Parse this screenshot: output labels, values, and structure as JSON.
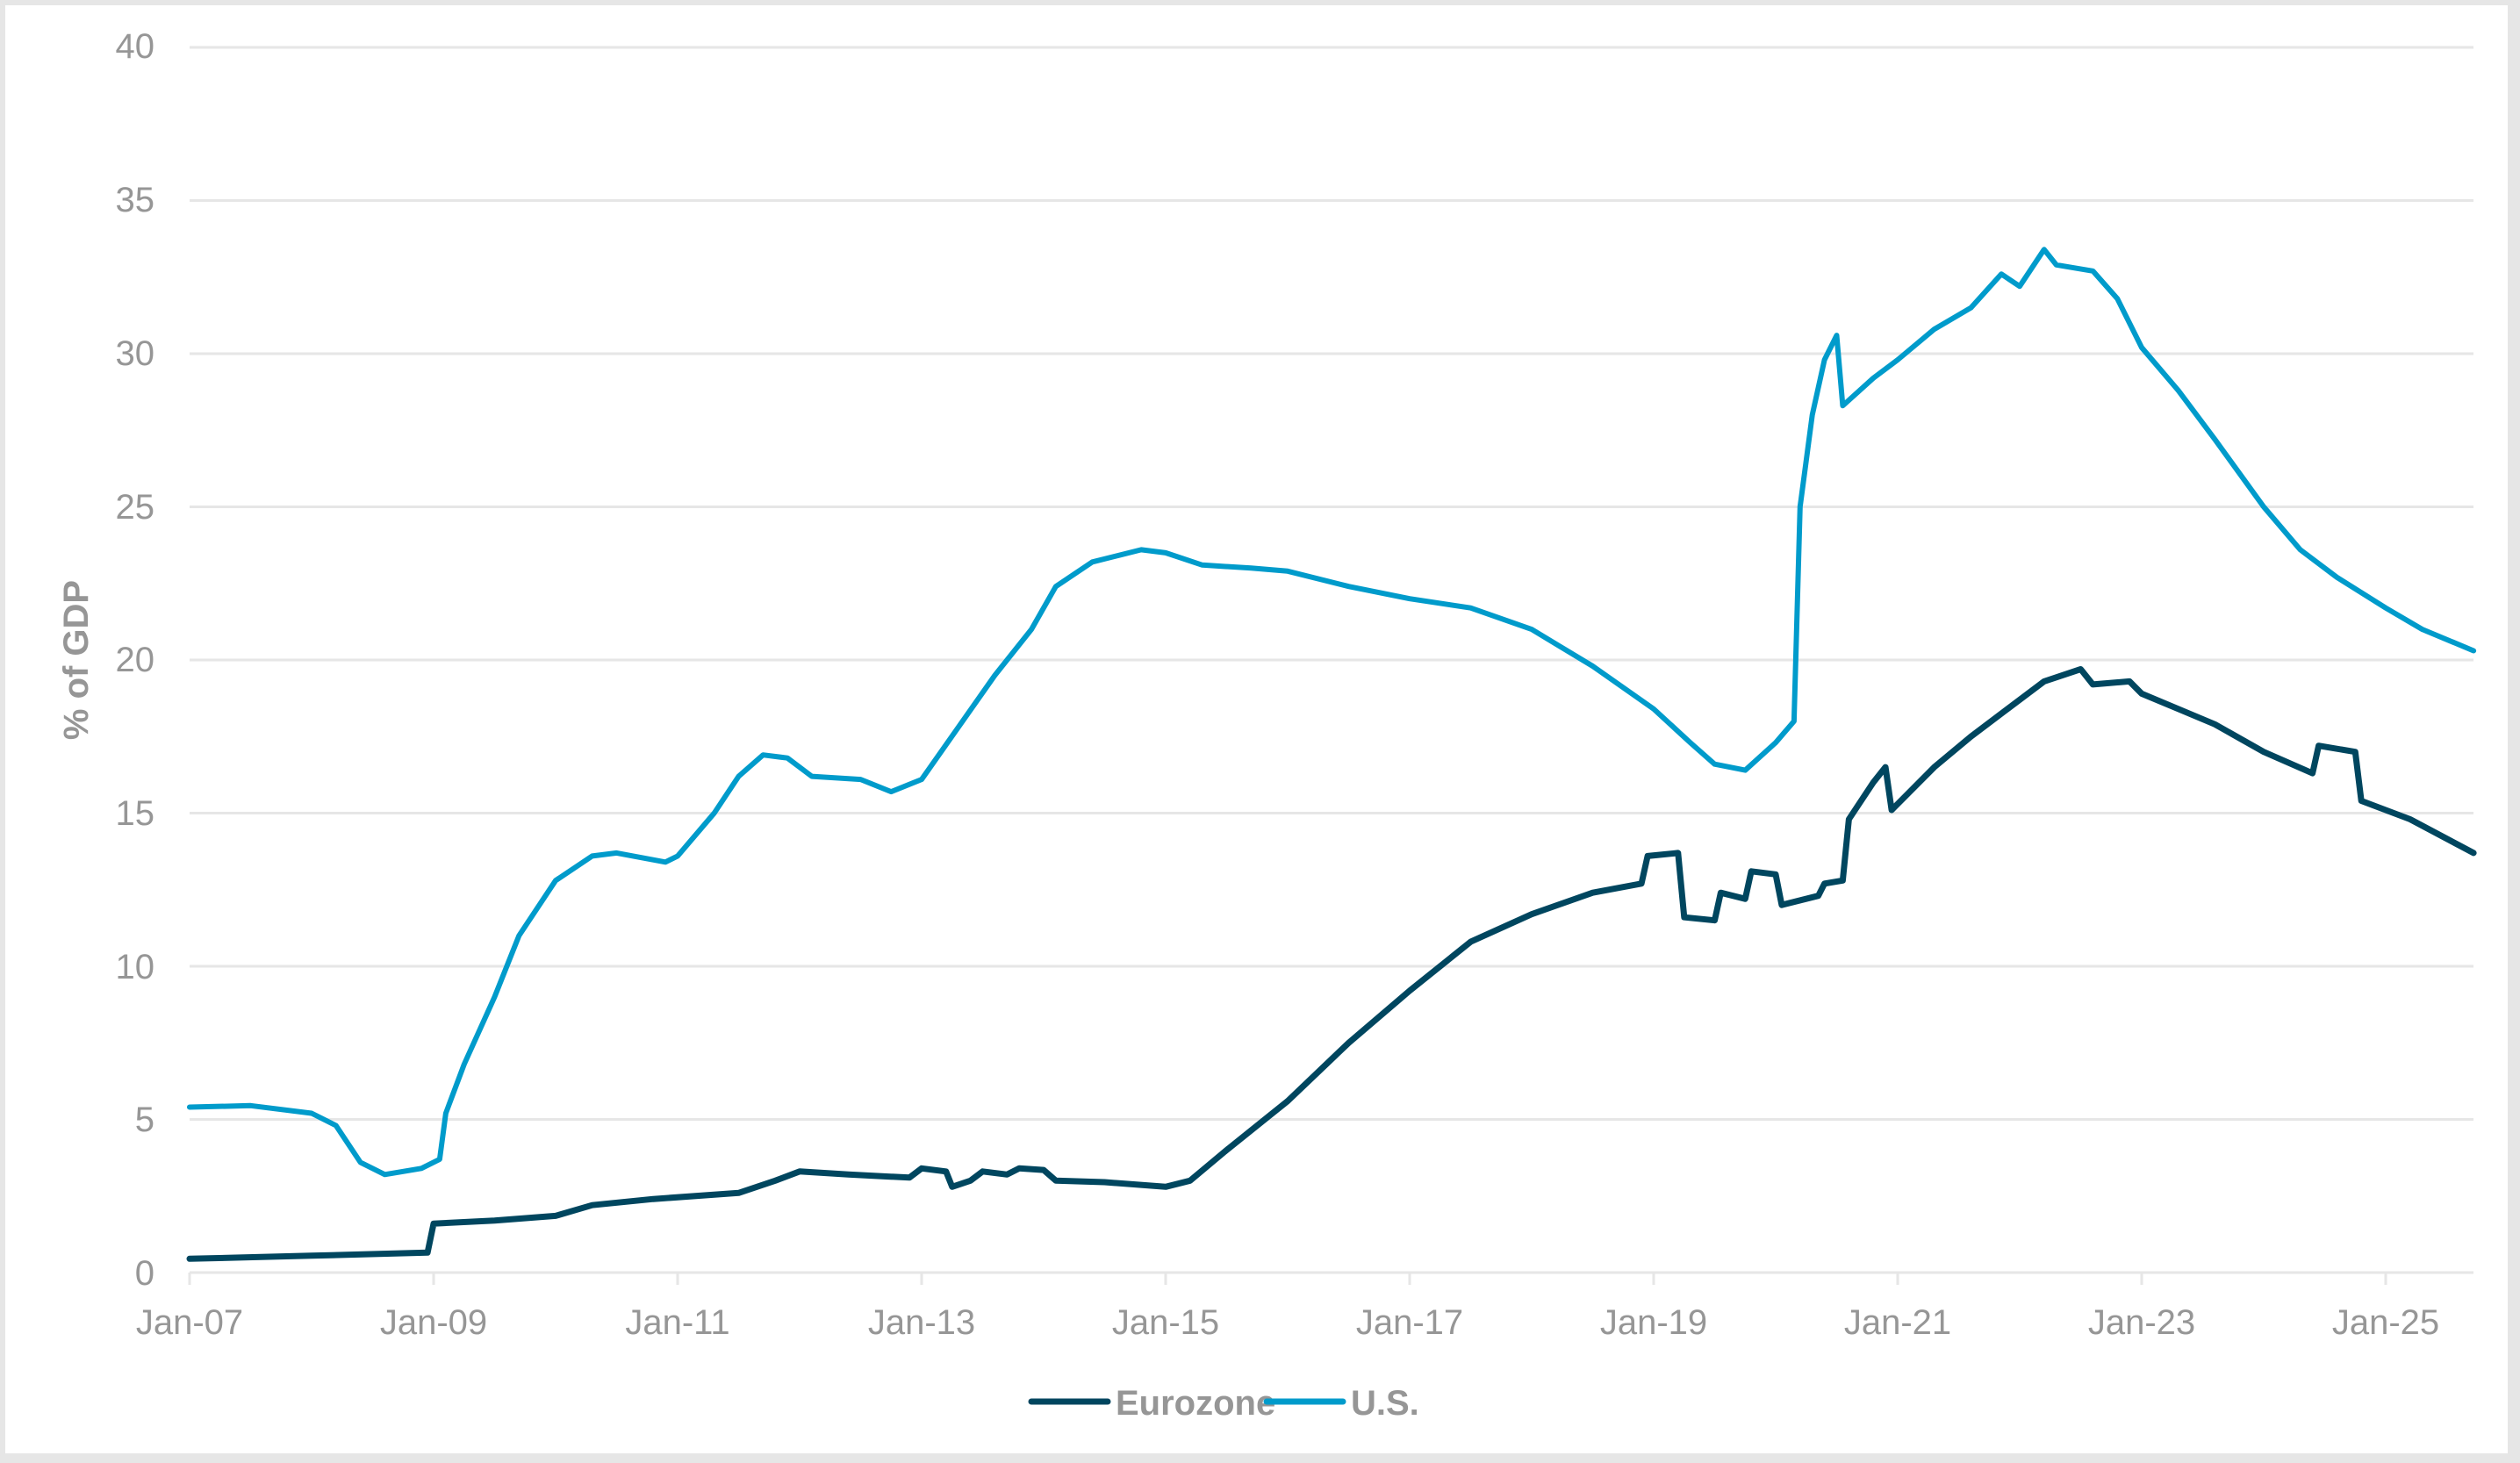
{
  "chart_data": {
    "type": "line",
    "title": "",
    "xlabel": "",
    "ylabel": "% of GDP",
    "ylim": [
      0,
      40
    ],
    "yticks": [
      0,
      5,
      10,
      15,
      20,
      25,
      30,
      35,
      40
    ],
    "xlim": [
      2007.0,
      2025.72
    ],
    "xticks": [
      {
        "x": 2007,
        "label": "Jan-07"
      },
      {
        "x": 2009,
        "label": "Jan-09"
      },
      {
        "x": 2011,
        "label": "Jan-11"
      },
      {
        "x": 2013,
        "label": "Jan-13"
      },
      {
        "x": 2015,
        "label": "Jan-15"
      },
      {
        "x": 2017,
        "label": "Jan-17"
      },
      {
        "x": 2019,
        "label": "Jan-19"
      },
      {
        "x": 2021,
        "label": "Jan-21"
      },
      {
        "x": 2023,
        "label": "Jan-23"
      },
      {
        "x": 2025,
        "label": "Jan-25"
      }
    ],
    "grid": true,
    "legend_position": "bottom",
    "series": [
      {
        "name": "Eurozone",
        "color": "#00465F",
        "x": [
          2007.0,
          2008.0,
          2008.95,
          2009.0,
          2009.5,
          2010.0,
          2010.3,
          2010.8,
          2011.5,
          2011.8,
          2012.0,
          2012.4,
          2012.9,
          2013.0,
          2013.2,
          2013.25,
          2013.4,
          2013.5,
          2013.7,
          2013.8,
          2014.0,
          2014.1,
          2014.5,
          2015.0,
          2015.2,
          2015.5,
          2016.0,
          2016.5,
          2017.0,
          2017.5,
          2018.0,
          2018.5,
          2018.9,
          2018.95,
          2019.2,
          2019.25,
          2019.5,
          2019.55,
          2019.75,
          2019.8,
          2020.0,
          2020.05,
          2020.35,
          2020.4,
          2020.55,
          2020.6,
          2020.8,
          2020.9,
          2020.95,
          2021.3,
          2021.6,
          2021.9,
          2022.2,
          2022.5,
          2022.6,
          2022.9,
          2023.0,
          2023.3,
          2023.6,
          2024.0,
          2024.4,
          2024.45,
          2024.75,
          2024.8,
          2025.2,
          2025.72
        ],
        "values": [
          0.45,
          0.55,
          0.65,
          1.6,
          1.7,
          1.85,
          2.2,
          2.4,
          2.6,
          3.0,
          3.3,
          3.2,
          3.1,
          3.4,
          3.3,
          2.8,
          3.0,
          3.3,
          3.2,
          3.4,
          3.35,
          3.0,
          2.95,
          2.8,
          3.0,
          4.0,
          5.6,
          7.5,
          9.2,
          10.8,
          11.7,
          12.4,
          12.7,
          13.6,
          13.7,
          11.6,
          11.5,
          12.4,
          12.2,
          13.1,
          13.0,
          12.0,
          12.3,
          12.7,
          12.8,
          14.8,
          16.0,
          16.5,
          15.1,
          16.5,
          17.5,
          18.4,
          19.3,
          19.7,
          19.2,
          19.3,
          18.9,
          18.4,
          17.9,
          17.0,
          16.3,
          17.2,
          17.0,
          15.4,
          14.8,
          13.7
        ]
      },
      {
        "name": "U.S.",
        "color": "#009BCB",
        "x": [
          2007.0,
          2007.5,
          2008.0,
          2008.2,
          2008.4,
          2008.6,
          2008.9,
          2009.05,
          2009.1,
          2009.25,
          2009.5,
          2009.7,
          2010.0,
          2010.3,
          2010.5,
          2010.9,
          2011.0,
          2011.3,
          2011.5,
          2011.7,
          2011.9,
          2012.1,
          2012.5,
          2012.75,
          2013.0,
          2013.3,
          2013.6,
          2013.9,
          2014.1,
          2014.4,
          2014.8,
          2015.0,
          2015.3,
          2015.7,
          2016.0,
          2016.5,
          2017.0,
          2017.5,
          2018.0,
          2018.5,
          2019.0,
          2019.3,
          2019.5,
          2019.75,
          2020.0,
          2020.15,
          2020.2,
          2020.3,
          2020.4,
          2020.5,
          2020.55,
          2020.8,
          2021.0,
          2021.3,
          2021.6,
          2021.85,
          2022.0,
          2022.2,
          2022.3,
          2022.6,
          2022.8,
          2023.0,
          2023.3,
          2023.6,
          2024.0,
          2024.3,
          2024.6,
          2025.0,
          2025.3,
          2025.72
        ],
        "values": [
          5.4,
          5.45,
          5.2,
          4.8,
          3.6,
          3.2,
          3.4,
          3.7,
          5.2,
          6.8,
          9.0,
          11.0,
          12.8,
          13.6,
          13.7,
          13.4,
          13.6,
          15.0,
          16.2,
          16.9,
          16.8,
          16.2,
          16.1,
          15.7,
          16.1,
          17.8,
          19.5,
          21.0,
          22.4,
          23.2,
          23.6,
          23.5,
          23.1,
          23.0,
          22.9,
          22.4,
          22.0,
          21.7,
          21.0,
          19.8,
          18.4,
          17.3,
          16.6,
          16.4,
          17.3,
          18.0,
          25.0,
          28.0,
          29.8,
          30.6,
          28.3,
          29.2,
          29.8,
          30.8,
          31.5,
          32.6,
          32.2,
          33.4,
          32.9,
          32.7,
          31.8,
          30.2,
          28.8,
          27.2,
          25.0,
          23.6,
          22.7,
          21.7,
          21.0,
          20.3
        ]
      }
    ]
  },
  "legend": {
    "items": [
      {
        "label": "Eurozone",
        "color": "#00465F"
      },
      {
        "label": "U.S.",
        "color": "#009BCB"
      }
    ]
  },
  "axes": {
    "y_title": "% of GDP",
    "y_tick_labels": [
      "0",
      "5",
      "10",
      "15",
      "20",
      "25",
      "30",
      "35",
      "40"
    ],
    "x_tick_labels": [
      "Jan-07",
      "Jan-09",
      "Jan-11",
      "Jan-13",
      "Jan-15",
      "Jan-17",
      "Jan-19",
      "Jan-21",
      "Jan-23",
      "Jan-25"
    ]
  }
}
